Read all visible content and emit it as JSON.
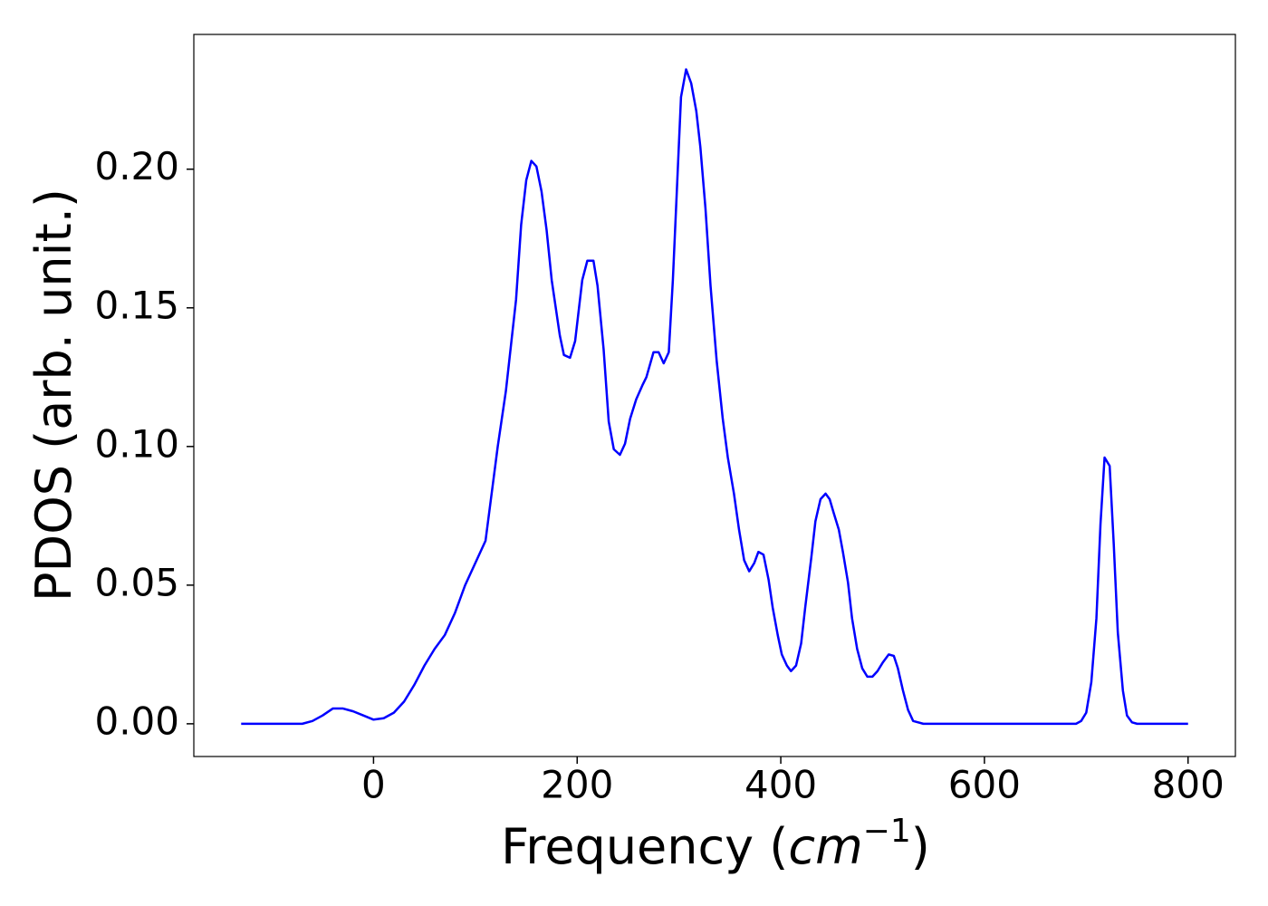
{
  "chart_data": {
    "type": "line",
    "xlabel": [
      "Frequency (",
      "cm",
      "−1",
      ")"
    ],
    "ylabel": "PDOS (arb. unit.)",
    "color": "#0000ff",
    "xlim": [
      -176.5,
      846.5
    ],
    "ylim": [
      -0.0118,
      0.2486
    ],
    "xticks": [
      0,
      200,
      400,
      600,
      800
    ],
    "yticks": [
      {
        "value": 0,
        "label": "0.00"
      },
      0.05,
      {
        "value": 0.1,
        "label": "0.10"
      },
      0.15,
      {
        "value": 0.2,
        "label": "0.20"
      }
    ],
    "grid": false,
    "x": [
      -130,
      -120,
      -110,
      -100,
      -90,
      -80,
      -70,
      -60,
      -50,
      -40,
      -30,
      -20,
      -10,
      0,
      10,
      20,
      30,
      40,
      50,
      60,
      70,
      80,
      90,
      100,
      110,
      122,
      130,
      140,
      145,
      150,
      155,
      160,
      165,
      170,
      175,
      183,
      187,
      193,
      198,
      205,
      210,
      216,
      220,
      226,
      231,
      236,
      242,
      247,
      252,
      258,
      264,
      268,
      275,
      280,
      285,
      290,
      294,
      298,
      302,
      307,
      312,
      317,
      321,
      326,
      331,
      337,
      343,
      348,
      354,
      359,
      364,
      369,
      374,
      378,
      383,
      388,
      392,
      397,
      401,
      406,
      410,
      415,
      420,
      424,
      430,
      434,
      439,
      444,
      448,
      452,
      457,
      461,
      466,
      470,
      475,
      480,
      485,
      490,
      495,
      500,
      506,
      511,
      515,
      520,
      525,
      530,
      540,
      560,
      600,
      650,
      690,
      695,
      700,
      705,
      710,
      714,
      718,
      723,
      727,
      731,
      736,
      740,
      745,
      750,
      800
    ],
    "values": [
      0,
      0,
      0,
      0,
      0,
      0,
      0,
      0.001,
      0.003,
      0.0055,
      0.0055,
      0.0045,
      0.003,
      0.0015,
      0.002,
      0.004,
      0.008,
      0.014,
      0.021,
      0.027,
      0.032,
      0.04,
      0.05,
      0.058,
      0.066,
      0.1,
      0.12,
      0.153,
      0.18,
      0.196,
      0.203,
      0.201,
      0.192,
      0.178,
      0.16,
      0.14,
      0.133,
      0.132,
      0.138,
      0.16,
      0.167,
      0.167,
      0.158,
      0.135,
      0.109,
      0.099,
      0.097,
      0.101,
      0.11,
      0.117,
      0.122,
      0.125,
      0.134,
      0.134,
      0.13,
      0.134,
      0.16,
      0.193,
      0.226,
      0.236,
      0.231,
      0.221,
      0.208,
      0.186,
      0.158,
      0.131,
      0.11,
      0.096,
      0.083,
      0.07,
      0.059,
      0.055,
      0.058,
      0.062,
      0.061,
      0.052,
      0.042,
      0.032,
      0.025,
      0.021,
      0.019,
      0.021,
      0.029,
      0.042,
      0.06,
      0.073,
      0.081,
      0.083,
      0.081,
      0.076,
      0.07,
      0.062,
      0.051,
      0.038,
      0.027,
      0.02,
      0.017,
      0.017,
      0.019,
      0.022,
      0.025,
      0.0245,
      0.02,
      0.012,
      0.005,
      0.001,
      0,
      0,
      0,
      0,
      0,
      0.001,
      0.004,
      0.015,
      0.038,
      0.072,
      0.096,
      0.093,
      0.065,
      0.033,
      0.012,
      0.003,
      0.0005,
      0,
      0
    ]
  }
}
